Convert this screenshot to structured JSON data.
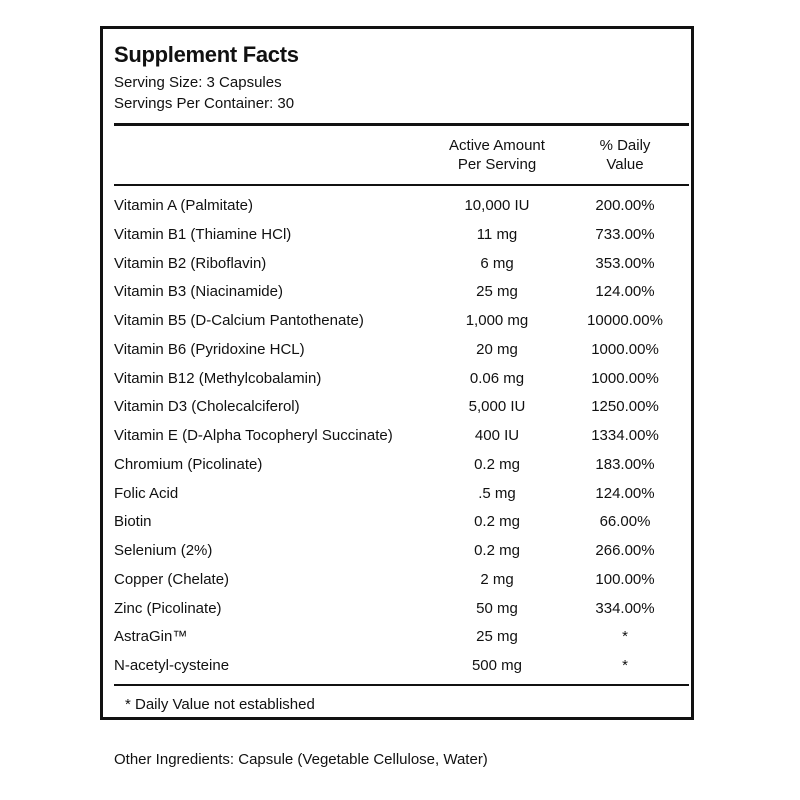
{
  "label": {
    "title": "Supplement Facts",
    "serving_size": "Serving Size:  3 Capsules",
    "servings_per_container": "Servings Per Container:  30",
    "columns": {
      "amount_line1": "Active Amount",
      "amount_line2": "Per Serving",
      "dv_line1": "% Daily",
      "dv_line2": "Value"
    },
    "rows": [
      {
        "name": "Vitamin A (Palmitate)",
        "amount": "10,000 IU",
        "dv": "200.00%"
      },
      {
        "name": "Vitamin B1 (Thiamine HCl)",
        "amount": "11 mg",
        "dv": "733.00%"
      },
      {
        "name": "Vitamin B2 (Riboflavin)",
        "amount": "6 mg",
        "dv": "353.00%"
      },
      {
        "name": "Vitamin B3 (Niacinamide)",
        "amount": "25 mg",
        "dv": "124.00%"
      },
      {
        "name": "Vitamin B5 (D-Calcium Pantothenate)",
        "amount": "1,000 mg",
        "dv": "10000.00%"
      },
      {
        "name": "Vitamin B6 (Pyridoxine HCL)",
        "amount": "20 mg",
        "dv": "1000.00%"
      },
      {
        "name": "Vitamin B12 (Methylcobalamin)",
        "amount": "0.06 mg",
        "dv": "1000.00%"
      },
      {
        "name": "Vitamin D3 (Cholecalciferol)",
        "amount": "5,000 IU",
        "dv": "1250.00%"
      },
      {
        "name": "Vitamin E (D-Alpha Tocopheryl Succinate)",
        "amount": "400 IU",
        "dv": "1334.00%"
      },
      {
        "name": "Chromium (Picolinate)",
        "amount": "0.2 mg",
        "dv": "183.00%"
      },
      {
        "name": "Folic Acid",
        "amount": ".5 mg",
        "dv": "124.00%"
      },
      {
        "name": "Biotin",
        "amount": "0.2 mg",
        "dv": "66.00%"
      },
      {
        "name": "Selenium (2%)",
        "amount": "0.2 mg",
        "dv": "266.00%"
      },
      {
        "name": "Copper (Chelate)",
        "amount": "2 mg",
        "dv": "100.00%"
      },
      {
        "name": "Zinc (Picolinate)",
        "amount": "50 mg",
        "dv": "334.00%"
      },
      {
        "name": "AstraGin™",
        "amount": "25 mg",
        "dv": "*"
      },
      {
        "name": "N-acetyl-cysteine",
        "amount": "500 mg",
        "dv": "*"
      }
    ],
    "footnote": "* Daily Value not established"
  },
  "other_ingredients": "Other Ingredients:  Capsule (Vegetable Cellulose, Water)"
}
